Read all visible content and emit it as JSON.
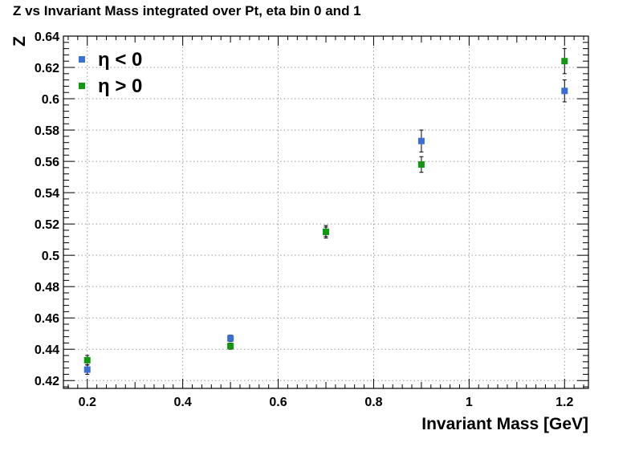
{
  "chart_data": {
    "type": "scatter",
    "title": "Z vs Invariant Mass integrated over Pt, eta bin 0 and 1",
    "xlabel": "Invariant Mass [GeV]",
    "ylabel": "Z",
    "xlim": [
      0.15,
      1.25
    ],
    "ylim": [
      0.415,
      0.64
    ],
    "xticks": [
      0.2,
      0.4,
      0.6,
      0.8,
      1.0,
      1.2
    ],
    "xtick_labels": [
      "0.2",
      "0.4",
      "0.6",
      "0.8",
      "1",
      "1.2"
    ],
    "yticks": [
      0.42,
      0.44,
      0.46,
      0.48,
      0.5,
      0.52,
      0.54,
      0.56,
      0.58,
      0.6,
      0.62,
      0.64
    ],
    "ytick_labels": [
      "0.42",
      "0.44",
      "0.46",
      "0.48",
      "0.5",
      "0.52",
      "0.54",
      "0.56",
      "0.58",
      "0.6",
      "0.62",
      "0.64"
    ],
    "grid": true,
    "legend_position": "top-left",
    "series": [
      {
        "name": "η < 0",
        "color": "#3a6fd8",
        "x": [
          0.2,
          0.5,
          0.7,
          0.9,
          1.2
        ],
        "y": [
          0.427,
          0.447,
          0.515,
          0.573,
          0.605
        ],
        "err": [
          0.003,
          0.002,
          0.003,
          0.007,
          0.007
        ]
      },
      {
        "name": "η > 0",
        "color": "#109810",
        "x": [
          0.2,
          0.5,
          0.7,
          0.9,
          1.2
        ],
        "y": [
          0.433,
          0.442,
          0.515,
          0.558,
          0.624
        ],
        "err": [
          0.003,
          0.002,
          0.004,
          0.005,
          0.008
        ]
      }
    ]
  }
}
